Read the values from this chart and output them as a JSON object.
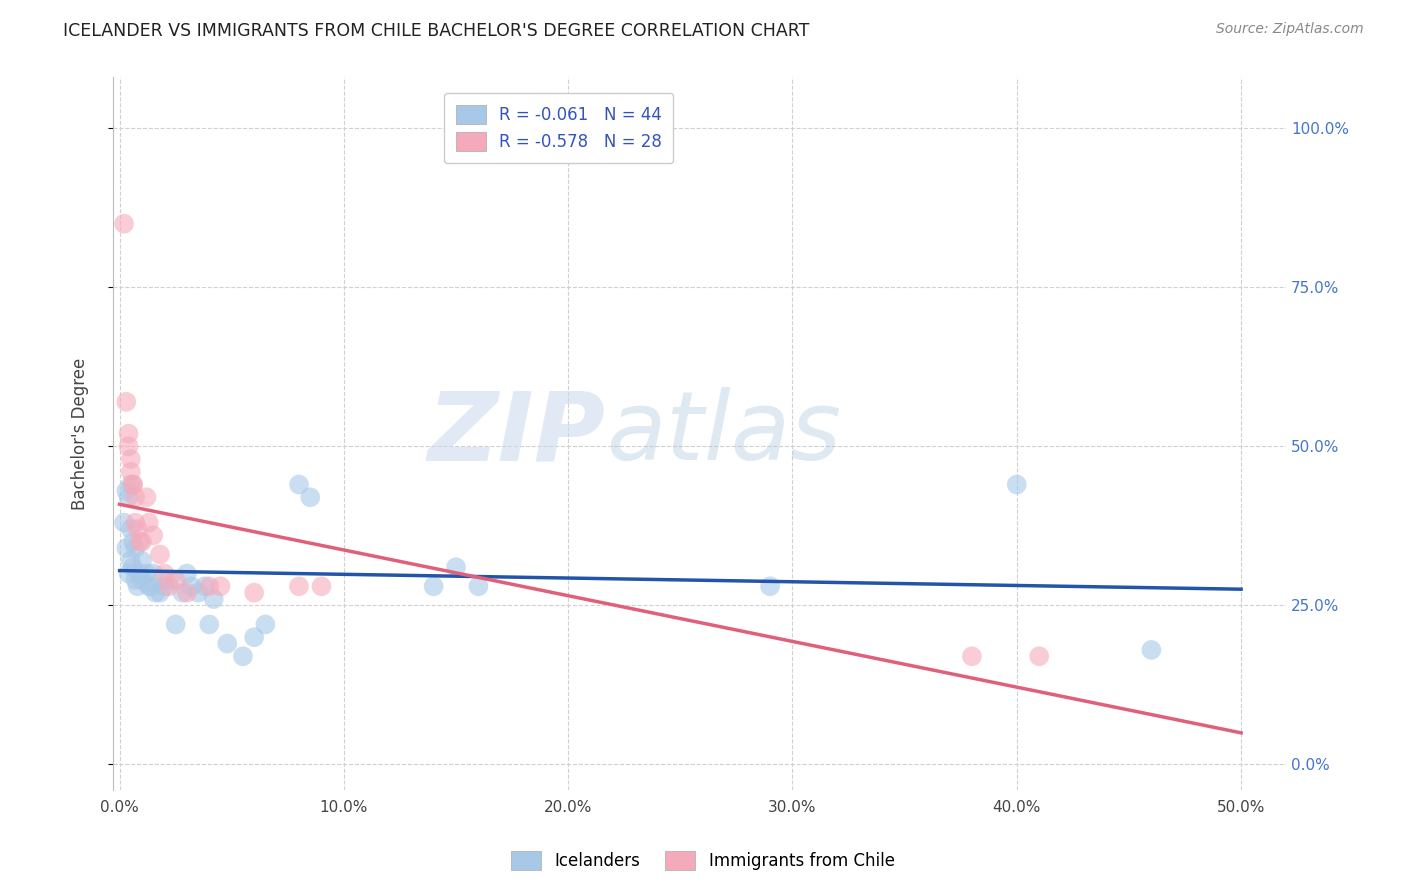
{
  "title": "ICELANDER VS IMMIGRANTS FROM CHILE BACHELOR'S DEGREE CORRELATION CHART",
  "source": "Source: ZipAtlas.com",
  "xlabel_ticks": [
    "0.0%",
    "10.0%",
    "20.0%",
    "30.0%",
    "40.0%",
    "50.0%"
  ],
  "ylabel_ticks": [
    "0.0%",
    "25.0%",
    "50.0%",
    "75.0%",
    "100.0%"
  ],
  "xlabel_vals": [
    0.0,
    0.1,
    0.2,
    0.3,
    0.4,
    0.5
  ],
  "ylabel_vals": [
    0.0,
    0.25,
    0.5,
    0.75,
    1.0
  ],
  "xlim": [
    -0.003,
    0.52
  ],
  "ylim": [
    -0.04,
    1.08
  ],
  "watermark_zip": "ZIP",
  "watermark_atlas": "atlas",
  "legend_entries": [
    {
      "label": "R = -0.061   N = 44",
      "color": "#aac4e8"
    },
    {
      "label": "R = -0.578   N = 28",
      "color": "#f5b0be"
    }
  ],
  "legend_label_icelanders": "Icelanders",
  "legend_label_immigrants": "Immigrants from Chile",
  "icelanders_color": "#a8c8e8",
  "immigrants_color": "#f5aabb",
  "icelanders_line_color": "#2255aa",
  "immigrants_line_color": "#e0607a",
  "icelanders_scatter": [
    [
      0.002,
      0.38
    ],
    [
      0.003,
      0.34
    ],
    [
      0.003,
      0.43
    ],
    [
      0.004,
      0.3
    ],
    [
      0.004,
      0.42
    ],
    [
      0.005,
      0.44
    ],
    [
      0.005,
      0.37
    ],
    [
      0.005,
      0.32
    ],
    [
      0.006,
      0.35
    ],
    [
      0.006,
      0.31
    ],
    [
      0.007,
      0.29
    ],
    [
      0.007,
      0.34
    ],
    [
      0.008,
      0.28
    ],
    [
      0.009,
      0.3
    ],
    [
      0.01,
      0.32
    ],
    [
      0.01,
      0.29
    ],
    [
      0.012,
      0.3
    ],
    [
      0.013,
      0.28
    ],
    [
      0.014,
      0.28
    ],
    [
      0.015,
      0.3
    ],
    [
      0.016,
      0.27
    ],
    [
      0.018,
      0.27
    ],
    [
      0.02,
      0.28
    ],
    [
      0.022,
      0.29
    ],
    [
      0.025,
      0.22
    ],
    [
      0.028,
      0.27
    ],
    [
      0.03,
      0.3
    ],
    [
      0.032,
      0.28
    ],
    [
      0.035,
      0.27
    ],
    [
      0.038,
      0.28
    ],
    [
      0.04,
      0.22
    ],
    [
      0.042,
      0.26
    ],
    [
      0.048,
      0.19
    ],
    [
      0.055,
      0.17
    ],
    [
      0.06,
      0.2
    ],
    [
      0.065,
      0.22
    ],
    [
      0.08,
      0.44
    ],
    [
      0.085,
      0.42
    ],
    [
      0.14,
      0.28
    ],
    [
      0.15,
      0.31
    ],
    [
      0.16,
      0.28
    ],
    [
      0.29,
      0.28
    ],
    [
      0.4,
      0.44
    ],
    [
      0.46,
      0.18
    ]
  ],
  "immigrants_scatter": [
    [
      0.002,
      0.85
    ],
    [
      0.003,
      0.57
    ],
    [
      0.004,
      0.52
    ],
    [
      0.004,
      0.5
    ],
    [
      0.005,
      0.48
    ],
    [
      0.005,
      0.46
    ],
    [
      0.006,
      0.44
    ],
    [
      0.006,
      0.44
    ],
    [
      0.007,
      0.42
    ],
    [
      0.007,
      0.38
    ],
    [
      0.008,
      0.37
    ],
    [
      0.009,
      0.35
    ],
    [
      0.01,
      0.35
    ],
    [
      0.012,
      0.42
    ],
    [
      0.013,
      0.38
    ],
    [
      0.015,
      0.36
    ],
    [
      0.018,
      0.33
    ],
    [
      0.02,
      0.3
    ],
    [
      0.022,
      0.28
    ],
    [
      0.025,
      0.29
    ],
    [
      0.03,
      0.27
    ],
    [
      0.04,
      0.28
    ],
    [
      0.045,
      0.28
    ],
    [
      0.06,
      0.27
    ],
    [
      0.08,
      0.28
    ],
    [
      0.09,
      0.28
    ],
    [
      0.38,
      0.17
    ],
    [
      0.41,
      0.17
    ]
  ],
  "ylabel": "Bachelor's Degree",
  "background_color": "#ffffff",
  "grid_color": "#cccccc"
}
